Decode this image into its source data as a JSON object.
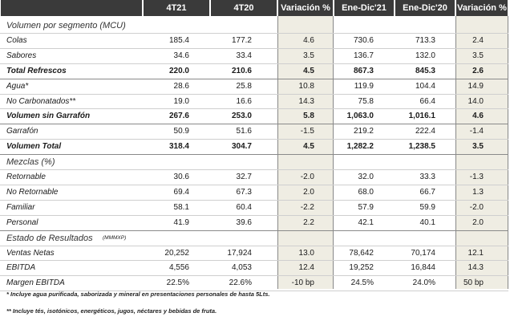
{
  "header": [
    "",
    "4T21",
    "4T20",
    "Variación %",
    "Ene-Dic'21",
    "Ene-Dic'20",
    "Variación %"
  ],
  "rows": [
    {
      "label": "Volumen por segmento (MCU)",
      "section": true
    },
    {
      "label": "Colas",
      "v": [
        "185.4",
        "177.2",
        "4.6",
        "730.6",
        "713.3",
        "2.4"
      ]
    },
    {
      "label": "Sabores",
      "v": [
        "34.6",
        "33.4",
        "3.5",
        "136.7",
        "132.0",
        "3.5"
      ]
    },
    {
      "label": "Total Refrescos",
      "bold": true,
      "v": [
        "220.0",
        "210.6",
        "4.5",
        "867.3",
        "845.3",
        "2.6"
      ]
    },
    {
      "label": "Agua*",
      "v": [
        "28.6",
        "25.8",
        "10.8",
        "119.9",
        "104.4",
        "14.9"
      ]
    },
    {
      "label": "No Carbonatados**",
      "v": [
        "19.0",
        "16.6",
        "14.3",
        "75.8",
        "66.4",
        "14.0"
      ]
    },
    {
      "label": "Volumen sin Garrafón",
      "bold": true,
      "v": [
        "267.6",
        "253.0",
        "5.8",
        "1,063.0",
        "1,016.1",
        "4.6"
      ]
    },
    {
      "label": "Garrafón",
      "v": [
        "50.9",
        "51.6",
        "-1.5",
        "219.2",
        "222.4",
        "-1.4"
      ]
    },
    {
      "label": "Volumen Total",
      "bold": true,
      "v": [
        "318.4",
        "304.7",
        "4.5",
        "1,282.2",
        "1,238.5",
        "3.5"
      ]
    },
    {
      "label": "Mezclas (%)",
      "section": true
    },
    {
      "label": "Retornable",
      "v": [
        "30.6",
        "32.7",
        "-2.0",
        "32.0",
        "33.3",
        "-1.3"
      ]
    },
    {
      "label": "No Retornable",
      "v": [
        "69.4",
        "67.3",
        "2.0",
        "68.0",
        "66.7",
        "1.3"
      ]
    },
    {
      "label": "Familiar",
      "v": [
        "58.1",
        "60.4",
        "-2.2",
        "57.9",
        "59.9",
        "-2.0"
      ]
    },
    {
      "label": "Personal",
      "v": [
        "41.9",
        "39.6",
        "2.2",
        "42.1",
        "40.1",
        "2.0"
      ]
    },
    {
      "label": "Estado de Resultados",
      "section": true,
      "unit": "(MMMXP)"
    },
    {
      "label": "Ventas Netas",
      "v": [
        "20,252",
        "17,924",
        "13.0",
        "78,642",
        "70,174",
        "12.1"
      ]
    },
    {
      "label": "EBITDA",
      "v": [
        "4,556",
        "4,053",
        "12.4",
        "19,252",
        "16,844",
        "14.3"
      ]
    },
    {
      "label": "Margen EBITDA",
      "v": [
        "22.5%",
        "22.6%",
        "-10 bp",
        "24.5%",
        "24.0%",
        "50 bp"
      ]
    }
  ],
  "footnotes": [
    "* Incluye agua purificada, saborizada y mineral en presentaciones personales de hasta 5Lts.",
    "** Incluye tés, isotónicos, energéticos, jugos, néctares y bebidas de fruta."
  ]
}
